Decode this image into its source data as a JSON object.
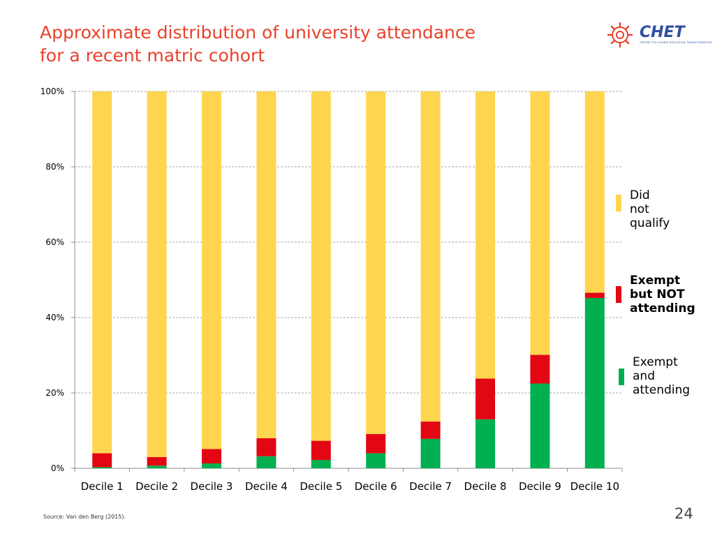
{
  "header": {
    "title_line1": "Approximate distribution of university attendance",
    "title_line2": "for a recent matric cohort",
    "logo_text": "CHET",
    "logo_tagline": "CENTRE FOR HIGHER EDUCATION TRANSFORMATION"
  },
  "colors": {
    "title": "#e8412c",
    "did_not_qualify": "#ffd54f",
    "exempt_not_attending": "#e30613",
    "exempt_attending": "#00b050",
    "logo": "#2f4fa0",
    "logo_sun": "#e8412c"
  },
  "legend": {
    "did_not_qualify": "Did not\nqualify",
    "exempt_not_attending": "Exempt\nbut NOT\nattending",
    "exempt_attending": "Exempt\nand\nattending"
  },
  "chart_data": {
    "type": "bar",
    "stacked": true,
    "title": "Approximate distribution of university attendance for a recent matric cohort",
    "xlabel": "",
    "ylabel": "",
    "ylim": [
      0,
      100
    ],
    "yticks": [
      "0%",
      "20%",
      "40%",
      "60%",
      "80%",
      "100%"
    ],
    "grid": true,
    "legend_position": "right",
    "categories": [
      "Decile 1",
      "Decile 2",
      "Decile 3",
      "Decile 4",
      "Decile 5",
      "Decile 6",
      "Decile 7",
      "Decile 8",
      "Decile 9",
      "Decile 10"
    ],
    "series": [
      {
        "name": "Exempt and attending",
        "color": "#00b050",
        "values": [
          0.3,
          0.7,
          1.3,
          3.2,
          2.2,
          4.0,
          7.8,
          13.0,
          22.5,
          45.2
        ]
      },
      {
        "name": "Exempt but NOT attending",
        "color": "#e30613",
        "values": [
          3.7,
          2.3,
          3.8,
          4.8,
          5.1,
          5.1,
          4.6,
          10.8,
          7.6,
          1.4
        ]
      },
      {
        "name": "Did not qualify",
        "color": "#ffd54f",
        "values": [
          96.0,
          97.0,
          94.9,
          92.0,
          92.7,
          90.9,
          87.6,
          76.2,
          69.9,
          53.4
        ]
      }
    ]
  },
  "footer": {
    "source": "Source: Van den Berg (2015).",
    "page_number": "24"
  }
}
